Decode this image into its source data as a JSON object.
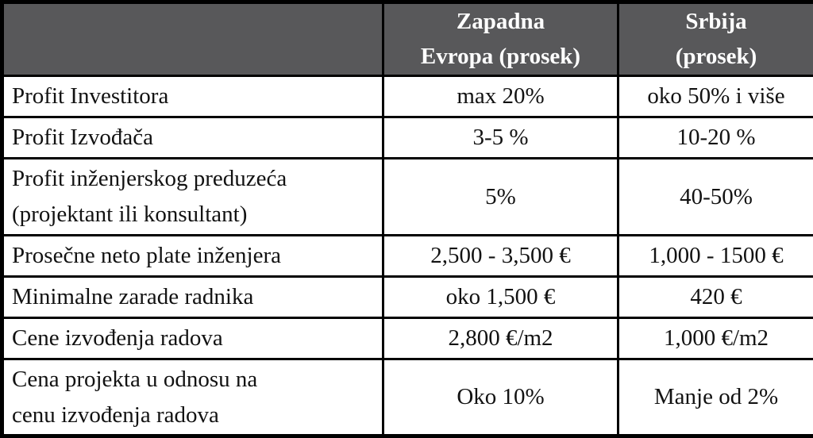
{
  "table": {
    "name": "Poredjenje Zapadna Evropa / Srbija",
    "colors": {
      "header_bg": "#58585a",
      "header_text": "#ffffff",
      "body_text": "#121212",
      "border": "#000000",
      "body_bg": "#ffffff"
    },
    "header": {
      "corner": "",
      "west": "Zapadna\nEvropa (prosek)",
      "serbia": "Srbija\n(prosek)"
    },
    "rows": [
      {
        "label": "Profit Investitora",
        "west": "max 20%",
        "serbia": "oko 50% i više"
      },
      {
        "label": "Profit Izvođača",
        "west": "3-5 %",
        "serbia": "10-20 %"
      },
      {
        "label": "Profit inženjerskog preduzeća\n(projektant ili konsultant)",
        "west": "5%",
        "serbia": "40-50%"
      },
      {
        "label": "Prosečne neto plate inženjera",
        "west": "2,500 - 3,500 €",
        "serbia": "1,000 - 1500 €"
      },
      {
        "label": "Minimalne zarade radnika",
        "west": "oko 1,500 €",
        "serbia": "420 €"
      },
      {
        "label": "Cene izvođenja radova",
        "west": "2,800 €/m2",
        "serbia": "1,000 €/m2"
      },
      {
        "label": "Cena projekta u odnosu na\ncenu izvođenja radova",
        "west": "Oko 10%",
        "serbia": "Manje od 2%"
      }
    ]
  }
}
